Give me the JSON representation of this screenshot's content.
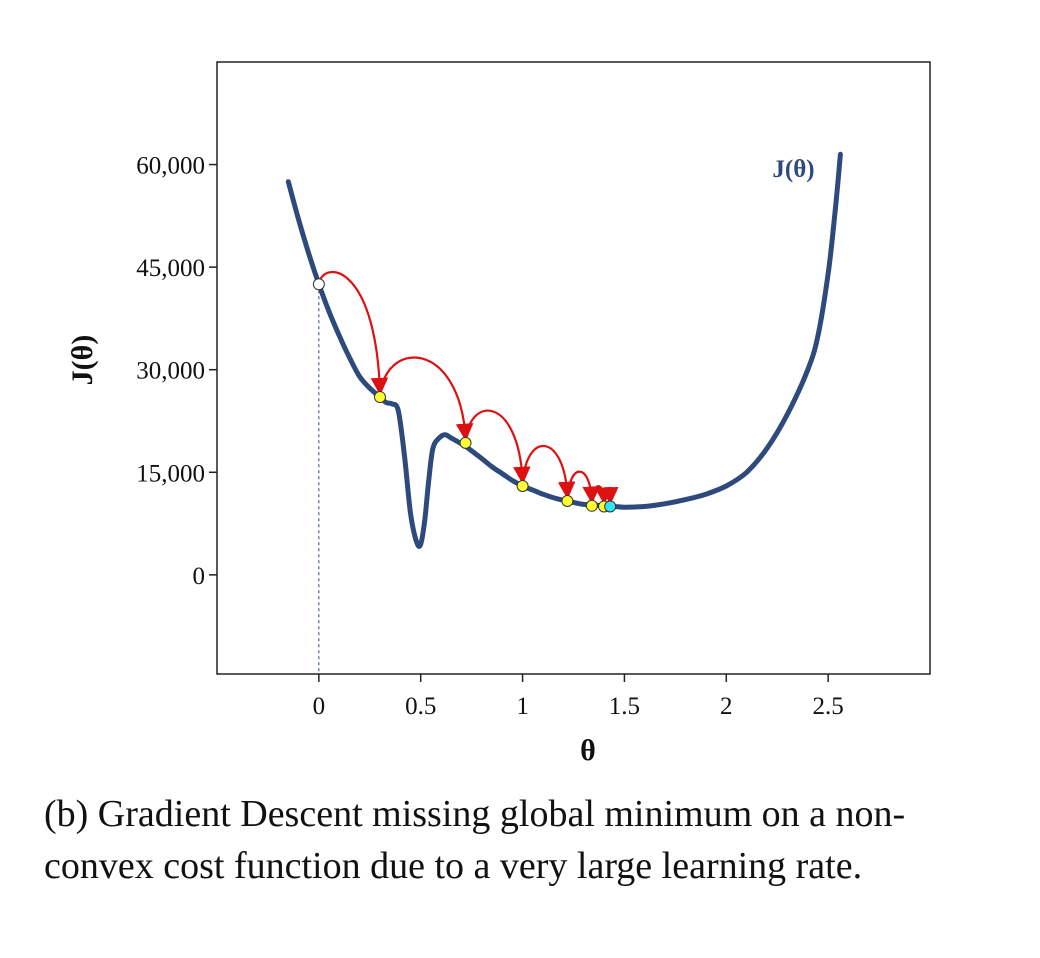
{
  "chart_data": {
    "type": "line",
    "xlabel": "θ",
    "ylabel": "J(θ)",
    "xlim": [
      -0.5,
      3.0
    ],
    "ylim": [
      -14500,
      75000
    ],
    "xticks": [
      0,
      0.5,
      1,
      1.5,
      2,
      2.5
    ],
    "xtick_labels": [
      "0",
      "0.5",
      "1",
      "1.5",
      "2",
      "2.5"
    ],
    "yticks": [
      0,
      15000,
      30000,
      45000,
      60000
    ],
    "ytick_labels": [
      "0",
      "15,000",
      "30,000",
      "45,000",
      "60,000"
    ],
    "grid": false,
    "series": [
      {
        "name": "J(θ)",
        "color": "#2e4a7d",
        "x": [
          -0.15,
          -0.1,
          -0.05,
          0,
          0.05,
          0.1,
          0.15,
          0.2,
          0.25,
          0.3,
          0.33,
          0.36,
          0.39,
          0.42,
          0.45,
          0.48,
          0.5,
          0.52,
          0.54,
          0.56,
          0.59,
          0.62,
          0.65,
          0.68,
          0.72,
          0.76,
          0.8,
          0.85,
          0.9,
          0.95,
          1.0,
          1.05,
          1.1,
          1.15,
          1.2,
          1.25,
          1.3,
          1.35,
          1.4,
          1.45,
          1.5,
          1.6,
          1.7,
          1.8,
          1.9,
          2.0,
          2.1,
          2.2,
          2.3,
          2.4,
          2.45,
          2.5,
          2.53,
          2.55,
          2.56
        ],
        "y": [
          57500,
          52000,
          47000,
          42500,
          38500,
          35000,
          31800,
          29000,
          27300,
          26000,
          25200,
          25000,
          24000,
          17500,
          9000,
          4800,
          4500,
          8000,
          14000,
          18500,
          20000,
          20500,
          20000,
          19500,
          18800,
          17900,
          17000,
          15800,
          14800,
          13800,
          13000,
          12400,
          11800,
          11300,
          10900,
          10600,
          10300,
          10200,
          10100,
          10000,
          9900,
          10000,
          10400,
          11000,
          11800,
          13000,
          15000,
          18500,
          23500,
          30000,
          35000,
          44000,
          52000,
          58000,
          61500
        ]
      }
    ],
    "points": {
      "start": {
        "x": 0,
        "y": 42500,
        "color": "#ffffff"
      },
      "steps": [
        {
          "x": 0.3,
          "y": 26000,
          "color": "#ffff33"
        },
        {
          "x": 0.72,
          "y": 19300,
          "color": "#ffff33"
        },
        {
          "x": 1.0,
          "y": 13000,
          "color": "#ffff33"
        },
        {
          "x": 1.22,
          "y": 10800,
          "color": "#ffff33"
        },
        {
          "x": 1.34,
          "y": 10100,
          "color": "#ffff33"
        },
        {
          "x": 1.4,
          "y": 10000,
          "color": "#ffff33"
        }
      ],
      "end": {
        "x": 1.43,
        "y": 10000,
        "color": "#33e6f0"
      }
    },
    "jumps": [
      {
        "from": [
          0,
          42500
        ],
        "to": [
          0.3,
          26000
        ],
        "peak": 46000
      },
      {
        "from": [
          0.3,
          26000
        ],
        "to": [
          0.72,
          19300
        ],
        "peak": 34500
      },
      {
        "from": [
          0.72,
          19300
        ],
        "to": [
          1.0,
          13000
        ],
        "peak": 26300
      },
      {
        "from": [
          1.0,
          13000
        ],
        "to": [
          1.22,
          10800
        ],
        "peak": 21000
      },
      {
        "from": [
          1.22,
          10800
        ],
        "to": [
          1.34,
          10100
        ],
        "peak": 16500
      },
      {
        "from": [
          1.34,
          10100
        ],
        "to": [
          1.4,
          10000
        ],
        "peak": 13800
      },
      {
        "from": [
          1.4,
          10000
        ],
        "to": [
          1.43,
          10000
        ],
        "peak": 13200
      }
    ],
    "arrow_color": "#dd1111",
    "curve_label": {
      "text": "J(θ)",
      "x": 2.33,
      "y": 59500
    }
  },
  "caption": "(b) Gradient Descent missing global minimum on a non-convex cost function due to a very large learning rate."
}
